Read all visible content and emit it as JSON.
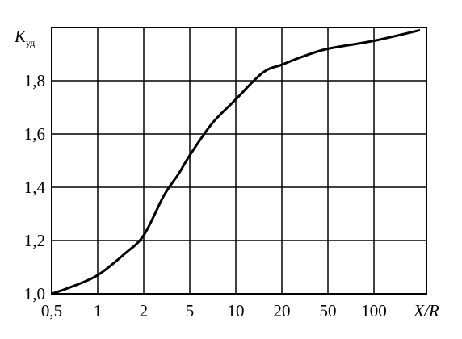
{
  "chart_data": {
    "type": "line",
    "title": "",
    "xlabel": "X/R",
    "ylabel": {
      "main": "K",
      "sub": "уд"
    },
    "x_scale": "log",
    "x_ticks": [
      {
        "value": 0.5,
        "label": "0,5"
      },
      {
        "value": 1,
        "label": "1"
      },
      {
        "value": 2,
        "label": "2"
      },
      {
        "value": 5,
        "label": "5"
      },
      {
        "value": 10,
        "label": "10"
      },
      {
        "value": 20,
        "label": "20"
      },
      {
        "value": 50,
        "label": "50"
      },
      {
        "value": 100,
        "label": "100"
      }
    ],
    "y_ticks": [
      {
        "value": 1.0,
        "label": "1,0"
      },
      {
        "value": 1.2,
        "label": "1,2"
      },
      {
        "value": 1.4,
        "label": "1,4"
      },
      {
        "value": 1.6,
        "label": "1,6"
      },
      {
        "value": 1.8,
        "label": "1,8"
      }
    ],
    "ylim": [
      1.0,
      2.0
    ],
    "grid": true,
    "series": [
      {
        "x": [
          0.5,
          0.7,
          1,
          1.5,
          2,
          3,
          4,
          5,
          7,
          10,
          15,
          20,
          30,
          50,
          100,
          200
        ],
        "values": [
          1.0,
          1.03,
          1.07,
          1.15,
          1.22,
          1.37,
          1.45,
          1.52,
          1.64,
          1.73,
          1.83,
          1.86,
          1.89,
          1.92,
          1.95,
          1.99
        ]
      }
    ],
    "colors": {
      "line": "#000000",
      "grid": "#000000"
    }
  }
}
